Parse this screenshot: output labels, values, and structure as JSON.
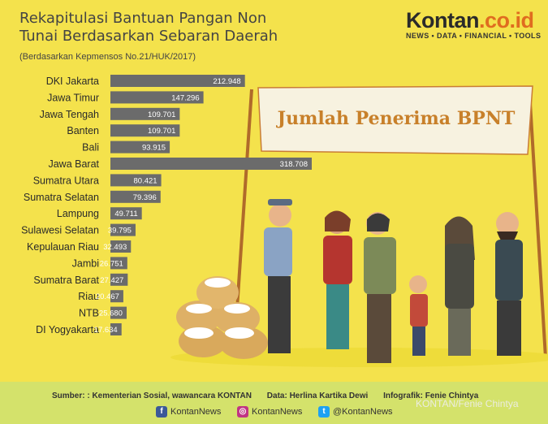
{
  "title_line1": "Rekapitulasi Bantuan Pangan Non",
  "title_line2": "Tunai Berdasarkan Sebaran Daerah",
  "subtitle": "(Berdasarkan Kepmensos No.21/HUK/2017)",
  "logo": {
    "brand_main": "Kontan",
    "brand_accent": ".co.id",
    "tagline": "NEWS • DATA • FINANCIAL • TOOLS"
  },
  "banner_text": "Jumlah Penerima BPNT",
  "footer": {
    "source": "Sumber: : Kementerian Sosial, wawancara KONTAN",
    "data": "Data: Herlina Kartika Dewi",
    "infografik": "Infografik: Fenie Chintya",
    "facebook": "KontanNews",
    "instagram": "KontanNews",
    "twitter": "@KontanNews",
    "watermark": "KONTAN/Fenie Chintya"
  },
  "colors": {
    "background": "#f4e24c",
    "bar": "#6b6b6b",
    "banner": "#f7f2e0",
    "banner_text": "#c8802a",
    "footer": "#d4e26b"
  },
  "chart_data": {
    "type": "bar",
    "orientation": "horizontal",
    "categories": [
      "DKI Jakarta",
      "Jawa Timur",
      "Jawa Tengah",
      "Banten",
      "Bali",
      "Jawa Barat",
      "Sumatra Utara",
      "Sumatra Selatan",
      "Lampung",
      "Sulawesi Selatan",
      "Kepulauan Riau",
      "Jambi",
      "Sumatra Barat",
      "Riau",
      "NTB",
      "DI Yogyakarta"
    ],
    "values": [
      212948,
      147296,
      109701,
      109701,
      93915,
      318708,
      80421,
      79396,
      49711,
      39795,
      32493,
      26751,
      27427,
      20467,
      25680,
      17634
    ],
    "value_labels": [
      "212.948",
      "147.296",
      "109.701",
      "109.701",
      "93.915",
      "318.708",
      "80.421",
      "79.396",
      "49.711",
      "39.795",
      "32.493",
      "26.751",
      "27.427",
      "20.467",
      "25.680",
      "17.634"
    ],
    "title": "Rekapitulasi Bantuan Pangan Non Tunai Berdasarkan Sebaran Daerah"
  }
}
